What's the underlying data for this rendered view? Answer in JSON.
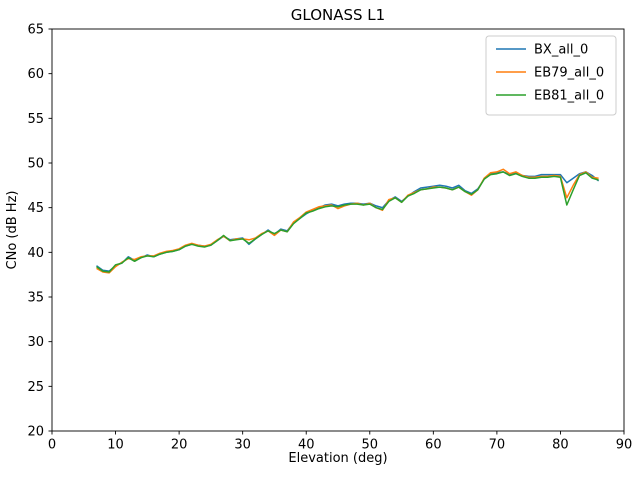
{
  "figure": {
    "title": "GLONASS L1",
    "xlabel": "Elevation (deg)",
    "ylabel": "CNo (dB Hz)"
  },
  "chart_data": {
    "type": "line",
    "title": "GLONASS L1",
    "xlabel": "Elevation (deg)",
    "ylabel": "CNo (dB Hz)",
    "xlim": [
      0,
      90
    ],
    "ylim": [
      20,
      65
    ],
    "x_ticks": [
      0,
      10,
      20,
      30,
      40,
      50,
      60,
      70,
      80,
      90
    ],
    "y_ticks": [
      20,
      25,
      30,
      35,
      40,
      45,
      50,
      55,
      60,
      65
    ],
    "grid": false,
    "legend_position": "upper right",
    "x": [
      7,
      8,
      9,
      10,
      11,
      12,
      13,
      14,
      15,
      16,
      17,
      18,
      19,
      20,
      21,
      22,
      23,
      24,
      25,
      26,
      27,
      28,
      29,
      30,
      31,
      32,
      33,
      34,
      35,
      36,
      37,
      38,
      39,
      40,
      41,
      42,
      43,
      44,
      45,
      46,
      47,
      48,
      49,
      50,
      51,
      52,
      53,
      54,
      55,
      56,
      57,
      58,
      59,
      60,
      61,
      62,
      63,
      64,
      65,
      66,
      67,
      68,
      69,
      70,
      71,
      72,
      73,
      74,
      75,
      76,
      77,
      78,
      79,
      80,
      81,
      82,
      83,
      84,
      85,
      86
    ],
    "series": [
      {
        "name": "BX_all_0",
        "color": "#1f77b4",
        "values": [
          38.5,
          38.0,
          37.9,
          38.5,
          38.8,
          39.5,
          39.1,
          39.4,
          39.7,
          39.5,
          39.8,
          40.0,
          40.1,
          40.3,
          40.7,
          40.9,
          40.8,
          40.7,
          40.8,
          41.3,
          41.8,
          41.4,
          41.5,
          41.6,
          40.9,
          41.5,
          42.0,
          42.5,
          42.0,
          42.6,
          42.4,
          43.3,
          43.8,
          44.3,
          44.7,
          45.0,
          45.3,
          45.4,
          45.2,
          45.4,
          45.5,
          45.5,
          45.4,
          45.5,
          45.2,
          45.0,
          45.8,
          46.2,
          45.7,
          46.3,
          46.8,
          47.2,
          47.3,
          47.4,
          47.5,
          47.4,
          47.2,
          47.5,
          46.9,
          46.6,
          47.1,
          48.2,
          48.8,
          48.9,
          49.0,
          48.7,
          48.9,
          48.6,
          48.5,
          48.5,
          48.7,
          48.7,
          48.7,
          48.7,
          47.8,
          48.3,
          48.8,
          49.0,
          48.6,
          48.0
        ]
      },
      {
        "name": "EB79_all_0",
        "color": "#ff7f0e",
        "values": [
          38.2,
          37.8,
          37.7,
          38.4,
          38.9,
          39.3,
          39.2,
          39.5,
          39.6,
          39.6,
          39.9,
          40.1,
          40.2,
          40.4,
          40.8,
          41.0,
          40.8,
          40.7,
          40.9,
          41.4,
          41.8,
          41.3,
          41.5,
          41.5,
          41.4,
          41.6,
          42.1,
          42.4,
          41.9,
          42.5,
          42.3,
          43.4,
          43.9,
          44.5,
          44.8,
          45.1,
          45.2,
          45.3,
          44.9,
          45.2,
          45.4,
          45.5,
          45.3,
          45.5,
          45.0,
          44.7,
          45.9,
          46.1,
          45.6,
          46.4,
          46.7,
          47.0,
          47.1,
          47.3,
          47.3,
          47.2,
          47.0,
          47.3,
          46.8,
          46.4,
          47.0,
          48.3,
          48.9,
          49.0,
          49.3,
          48.8,
          49.0,
          48.6,
          48.4,
          48.4,
          48.5,
          48.5,
          48.6,
          48.5,
          46.1,
          47.5,
          48.7,
          49.0,
          48.4,
          48.3
        ]
      },
      {
        "name": "EB81_all_0",
        "color": "#2ca02c",
        "values": [
          38.4,
          37.9,
          37.8,
          38.6,
          38.8,
          39.4,
          39.0,
          39.4,
          39.6,
          39.5,
          39.8,
          40.0,
          40.1,
          40.3,
          40.7,
          40.9,
          40.7,
          40.6,
          40.8,
          41.3,
          41.9,
          41.3,
          41.4,
          41.5,
          41.0,
          41.5,
          42.0,
          42.4,
          42.1,
          42.5,
          42.3,
          43.2,
          43.8,
          44.4,
          44.6,
          44.9,
          45.1,
          45.2,
          45.1,
          45.3,
          45.4,
          45.4,
          45.3,
          45.4,
          45.0,
          44.8,
          45.7,
          46.1,
          45.6,
          46.3,
          46.6,
          47.0,
          47.1,
          47.2,
          47.3,
          47.2,
          47.0,
          47.3,
          46.8,
          46.5,
          47.0,
          48.2,
          48.7,
          48.8,
          49.0,
          48.6,
          48.8,
          48.5,
          48.3,
          48.3,
          48.4,
          48.4,
          48.5,
          48.4,
          45.3,
          47.0,
          48.6,
          48.9,
          48.3,
          48.1
        ]
      }
    ],
    "style": {
      "line_width": 1.5,
      "spine_color": "#000000",
      "legend_border_color": "#cccccc",
      "background": "#ffffff"
    }
  }
}
